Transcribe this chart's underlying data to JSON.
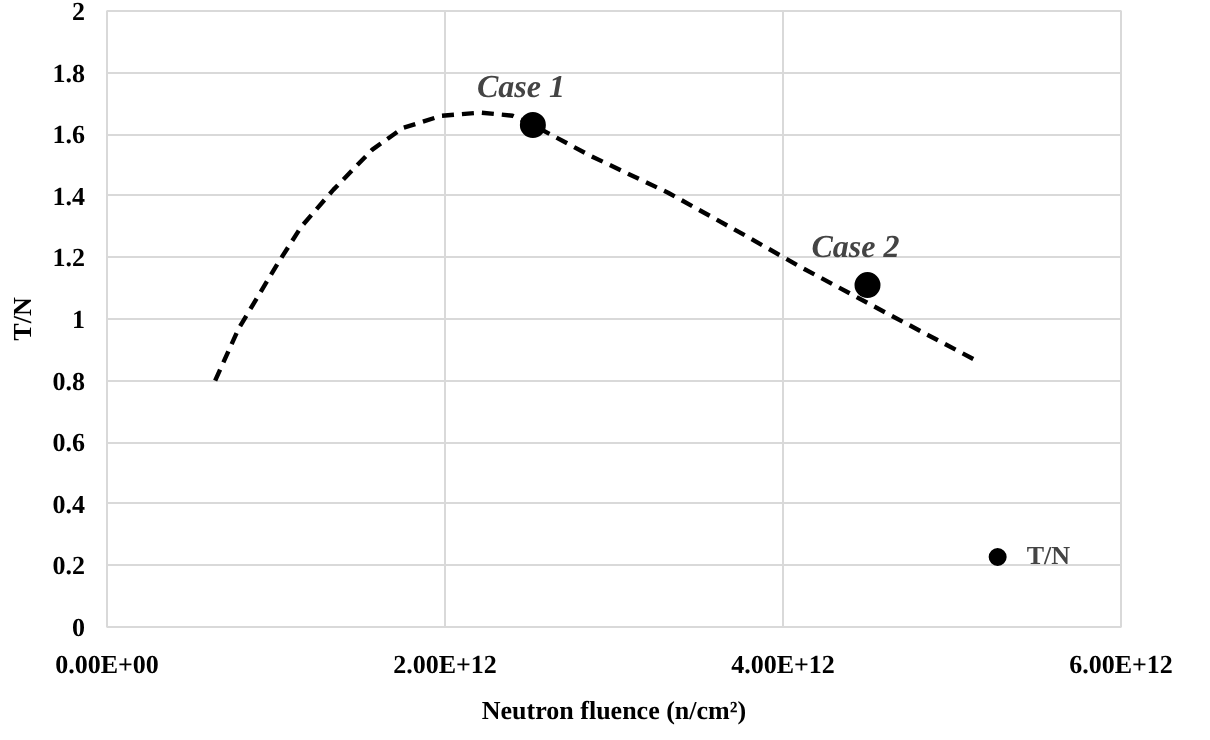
{
  "chart_data": {
    "type": "scatter",
    "xlabel": "Neutron fluence (n/cm²)",
    "ylabel": "T/N",
    "xlim": [
      0,
      6000000000000.0
    ],
    "ylim": [
      0,
      2
    ],
    "xticks": [
      {
        "value": 0,
        "label": "0.00E+00"
      },
      {
        "value": 2000000000000.0,
        "label": "2.00E+12"
      },
      {
        "value": 4000000000000.0,
        "label": "4.00E+12"
      },
      {
        "value": 6000000000000.0,
        "label": "6.00E+12"
      }
    ],
    "yticks": [
      0,
      0.2,
      0.4,
      0.6,
      0.8,
      1,
      1.2,
      1.4,
      1.6,
      1.8,
      2
    ],
    "grid": true,
    "legend": "bottom right",
    "series": [
      {
        "type": "line",
        "color": "#000000",
        "line_style": "dashed",
        "marker": "none",
        "x": [
          640000000000.0,
          780000000000.0,
          1010000000000.0,
          1150000000000.0,
          1340000000000.0,
          1570000000000.0,
          1750000000000.0,
          1980000000000.0,
          2210000000000.0,
          2400000000000.0,
          2520000000000.0,
          2860000000000.0,
          3320000000000.0,
          3780000000000.0,
          4100000000000.0,
          4610000000000.0,
          5160000000000.0
        ],
        "values": [
          0.8,
          0.97,
          1.18,
          1.3,
          1.42,
          1.55,
          1.62,
          1.66,
          1.67,
          1.66,
          1.63,
          1.53,
          1.41,
          1.27,
          1.17,
          1.02,
          0.86
        ]
      },
      {
        "name": "T/N",
        "color": "#000000",
        "marker": "circle",
        "x": [
          2520000000000.0,
          4500000000000.0
        ],
        "values": [
          1.63,
          1.11
        ]
      }
    ],
    "annotations": [
      {
        "text": "Case 1",
        "x": 2520000000000.0,
        "y": 1.63
      },
      {
        "text": "Case 2",
        "x": 4500000000000.0,
        "y": 1.11
      }
    ]
  }
}
